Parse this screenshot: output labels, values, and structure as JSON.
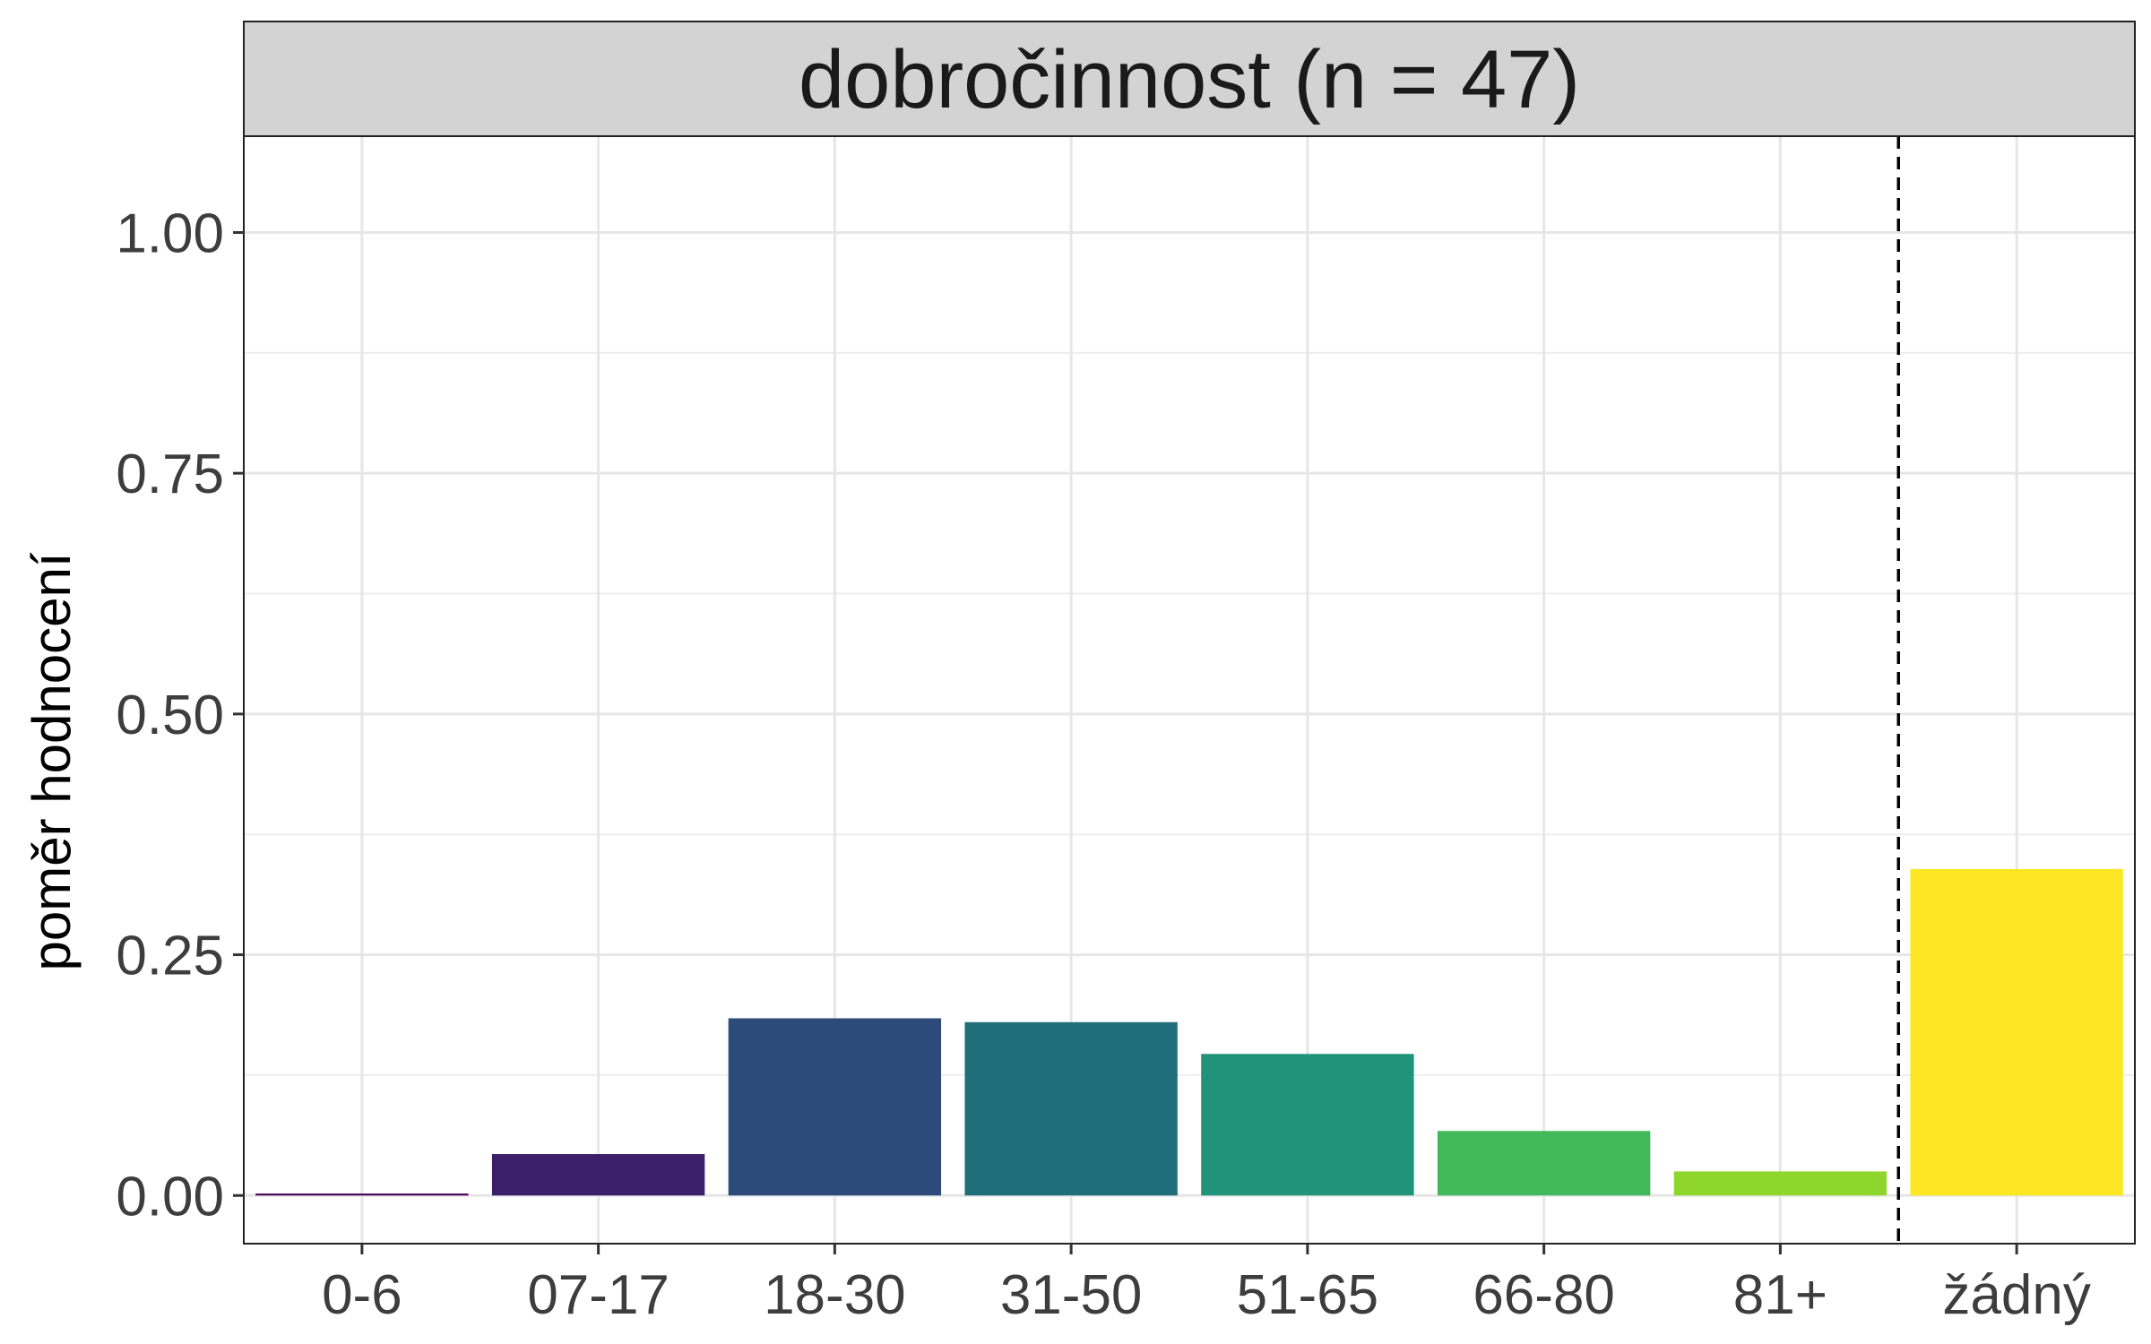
{
  "chart_data": {
    "type": "bar",
    "facet_title": "dobročinnost (n = 47)",
    "ylabel": "poměr hodnocení",
    "xlabel": "",
    "categories": [
      "0-6",
      "07-17",
      "18-30",
      "31-50",
      "51-65",
      "66-80",
      "81+",
      "žádný"
    ],
    "values": [
      0.002,
      0.043,
      0.184,
      0.18,
      0.147,
      0.067,
      0.025,
      0.339
    ],
    "colors": [
      "#440154",
      "#3b1f6b",
      "#2c4a7a",
      "#216e7b",
      "#21937a",
      "#41b85a",
      "#8ed62b",
      "#fde724"
    ],
    "ylim": [
      -0.05,
      1.1
    ],
    "yticks": [
      0,
      0.25,
      0.5,
      0.75,
      1
    ],
    "ytick_labels": [
      "0.00",
      "0.25",
      "0.50",
      "0.75",
      "1.00"
    ],
    "grid": true,
    "reference_line": {
      "between_categories": [
        "81+",
        "žádný"
      ],
      "style": "dashed"
    }
  }
}
